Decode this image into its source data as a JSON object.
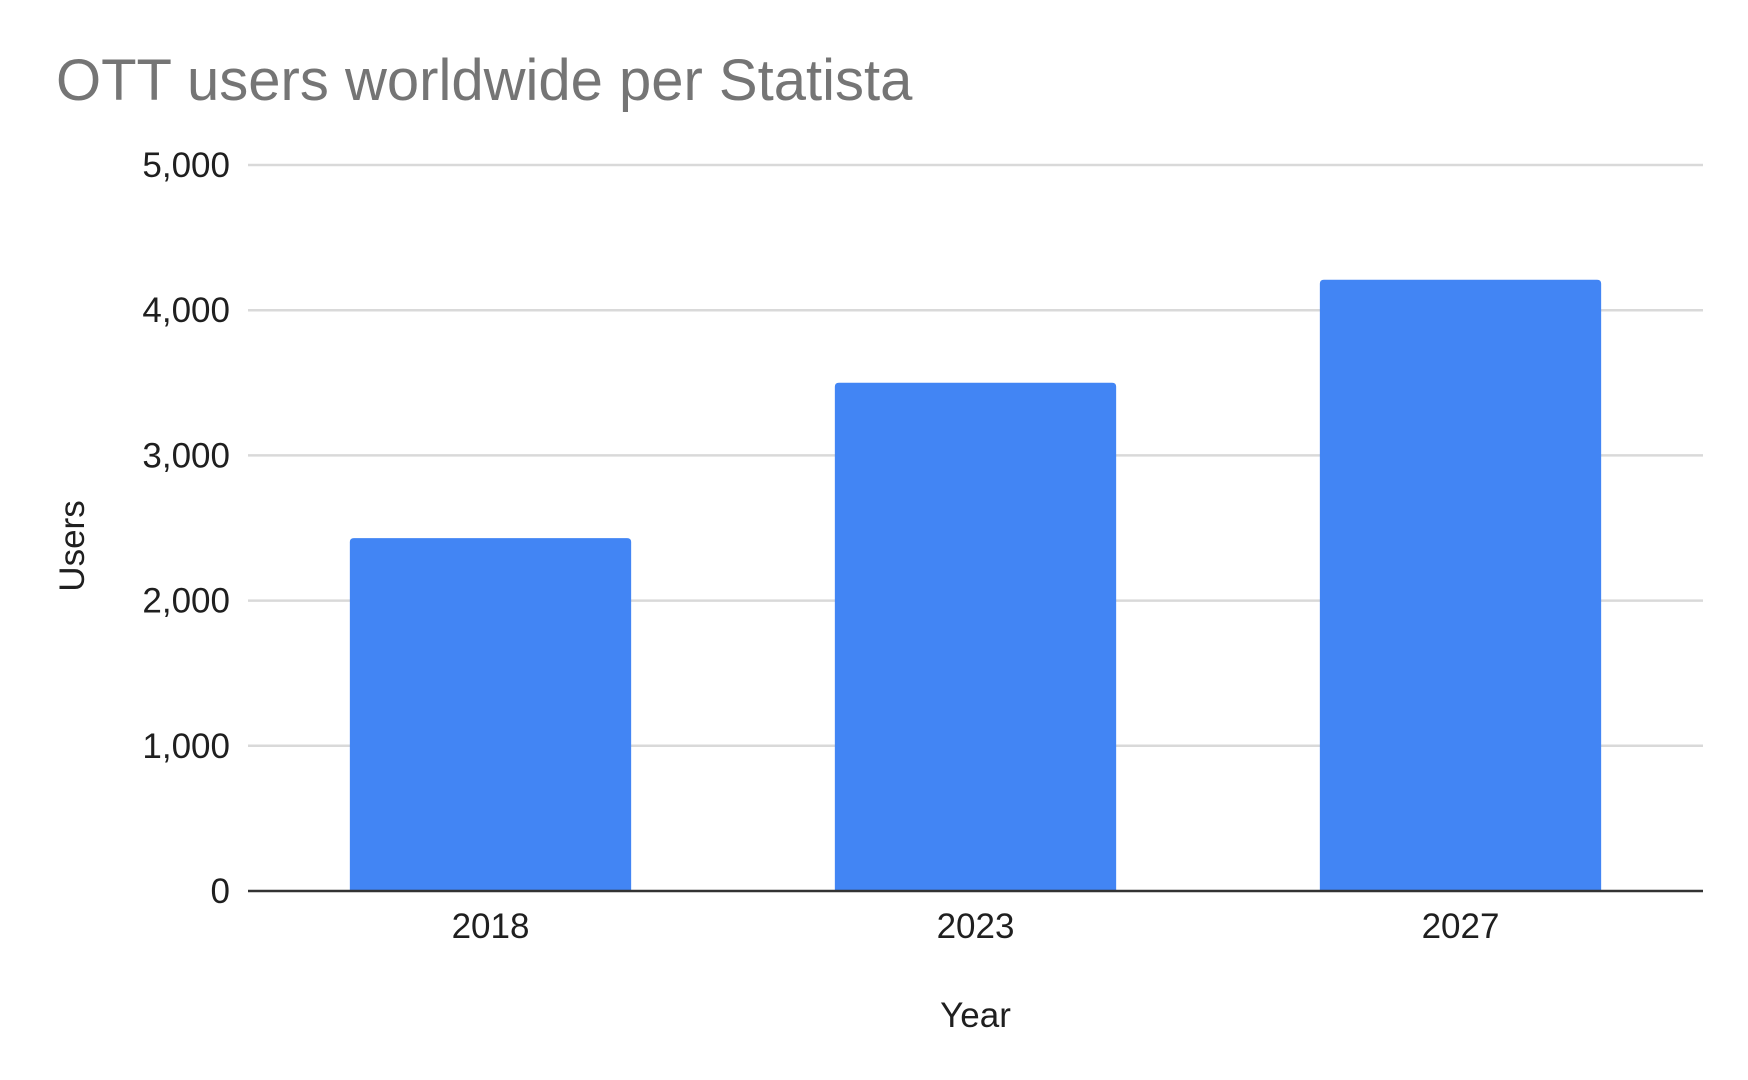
{
  "chart_data": {
    "type": "bar",
    "title": "OTT users worldwide per Statista",
    "xlabel": "Year",
    "ylabel": "Users",
    "categories": [
      "2018",
      "2023",
      "2027"
    ],
    "series": [
      {
        "values": [
          2430,
          3500,
          4210
        ],
        "color": "#4285f4"
      }
    ],
    "ylim": [
      0,
      5000
    ],
    "yticks": [
      0,
      1000,
      2000,
      3000,
      4000,
      5000
    ],
    "ytick_labels": [
      "0",
      "1,000",
      "2,000",
      "3,000",
      "4,000",
      "5,000"
    ],
    "grid": true,
    "legend": "none"
  }
}
